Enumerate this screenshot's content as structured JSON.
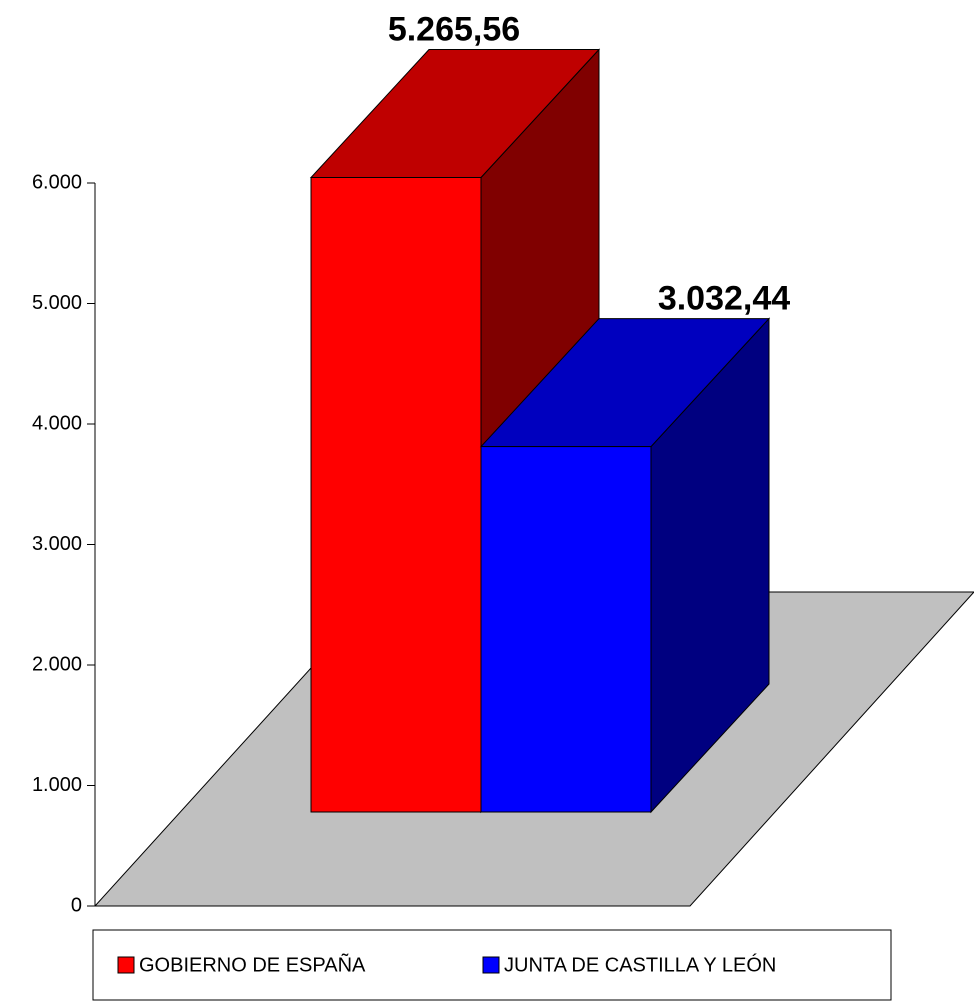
{
  "chart_data": {
    "type": "bar3d",
    "series": [
      {
        "name": "GOBIERNO DE ESPAÑA",
        "color": "#ff0000",
        "values": [
          5265.56
        ],
        "value_labels": [
          "5.265,56"
        ]
      },
      {
        "name": "JUNTA DE CASTILLA Y LEÓN",
        "color": "#0000ff",
        "values": [
          3032.44
        ],
        "value_labels": [
          "3.032,44"
        ]
      }
    ],
    "ylim": [
      0,
      6000
    ],
    "yticks": [
      0,
      {
        "value": 1000,
        "label": "1.000"
      },
      {
        "value": 2000,
        "label": "2.000"
      },
      {
        "value": 3000,
        "label": "3.000"
      },
      {
        "value": 4000,
        "label": "4.000"
      },
      {
        "value": 5000,
        "label": "5.000"
      },
      {
        "value": 6000,
        "label": "6.000"
      }
    ],
    "legend": "bottom"
  }
}
